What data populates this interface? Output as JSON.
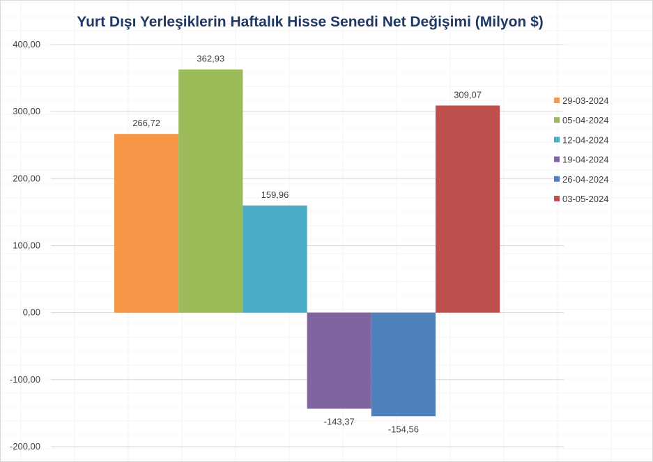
{
  "chart_data": {
    "type": "bar",
    "title": "Yurt Dışı Yerleşiklerin Haftalık Hisse Senedi Net Değişimi (Milyon $)",
    "xlabel": "",
    "ylabel": "",
    "ylim": [
      -200,
      400
    ],
    "y_ticks": [
      400,
      300,
      200,
      100,
      0,
      -100,
      -200
    ],
    "y_tick_labels": [
      "400,00",
      "300,00",
      "200,00",
      "100,00",
      "0,00",
      "-100,00",
      "-200,00"
    ],
    "grid": true,
    "legend_position": "right",
    "series": [
      {
        "name": "29-03-2024",
        "value": 266.72,
        "label": "266,72",
        "color": "#f79646"
      },
      {
        "name": "05-04-2024",
        "value": 362.93,
        "label": "362,93",
        "color": "#9bbb59"
      },
      {
        "name": "12-04-2024",
        "value": 159.96,
        "label": "159,96",
        "color": "#4bacc6"
      },
      {
        "name": "19-04-2024",
        "value": -143.37,
        "label": "-143,37",
        "color": "#8064a2"
      },
      {
        "name": "26-04-2024",
        "value": -154.56,
        "label": "-154,56",
        "color": "#4f81bd"
      },
      {
        "name": "03-05-2024",
        "value": 309.07,
        "label": "309,07",
        "color": "#c0504d"
      }
    ]
  }
}
